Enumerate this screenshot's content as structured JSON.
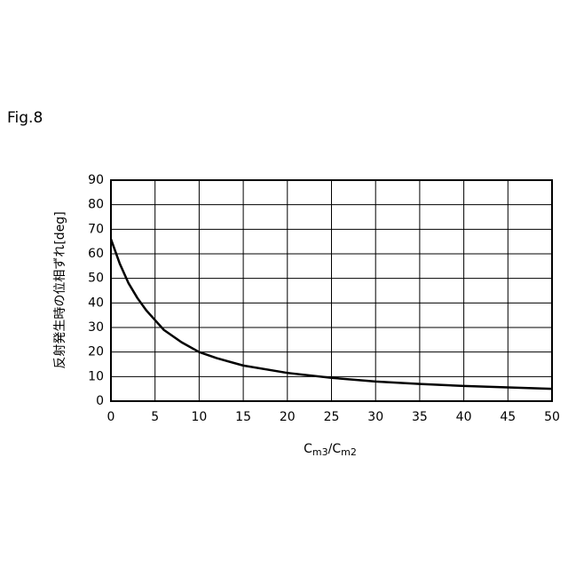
{
  "figure_label": "Fig.8",
  "chart_data": {
    "type": "line",
    "x_label": "Cm3/Cm2",
    "y_label": "反射発生時の位相ずれ[deg]",
    "x": [
      0,
      1,
      2,
      3,
      4,
      5,
      6,
      8,
      10,
      12,
      15,
      20,
      25,
      30,
      35,
      40,
      45,
      50
    ],
    "series": [
      {
        "color": "#000000",
        "values": [
          66,
          56,
          48,
          42,
          37,
          33,
          29,
          24,
          20,
          17.5,
          14.5,
          11.5,
          9.5,
          8,
          7,
          6.2,
          5.6,
          5
        ]
      }
    ],
    "xlim": [
      0,
      50
    ],
    "xticks": [
      0,
      5,
      10,
      15,
      20,
      25,
      30,
      35,
      40,
      45,
      50
    ],
    "ylim": [
      0,
      90
    ],
    "yticks": [
      0,
      10,
      20,
      30,
      40,
      50,
      60,
      70,
      80,
      90
    ],
    "grid": true
  }
}
